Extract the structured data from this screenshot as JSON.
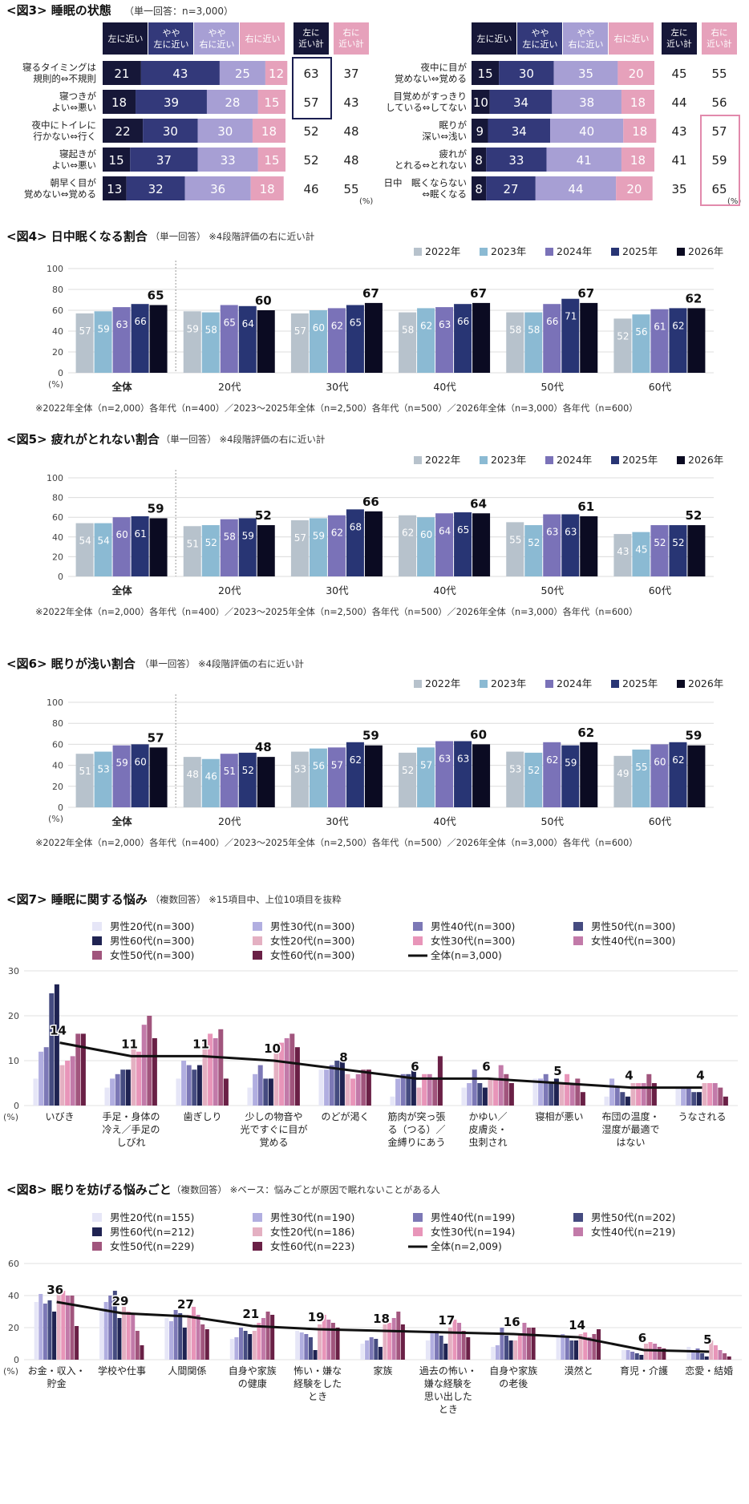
{
  "fig3": {
    "title": "<図3> 睡眠の状態",
    "note": "（単一回答：n=3,000）",
    "headers": [
      "左に近い",
      "やや 左に近い",
      "やや 右に近い",
      "右に近い"
    ],
    "sum_headers": [
      "左に 近い計",
      "右に 近い計"
    ],
    "unit": "(%)",
    "colors": [
      "#161738",
      "#33397a",
      "#a79fd4",
      "#e6a1bb"
    ],
    "left": [
      {
        "label": [
          "寝るタイミングは",
          "規則的⇔不規則"
        ],
        "values": [
          21,
          43,
          25,
          12
        ],
        "left_sum": 63,
        "right_sum": 37
      },
      {
        "label": [
          "寝つきが",
          "よい⇔悪い"
        ],
        "values": [
          18,
          39,
          28,
          15
        ],
        "left_sum": 57,
        "right_sum": 43
      },
      {
        "label": [
          "夜中にトイレに",
          "行かない⇔行く"
        ],
        "values": [
          22,
          30,
          30,
          18
        ],
        "left_sum": 52,
        "right_sum": 48
      },
      {
        "label": [
          "寝起きが",
          "よい⇔悪い"
        ],
        "values": [
          15,
          37,
          33,
          15
        ],
        "left_sum": 52,
        "right_sum": 48
      },
      {
        "label": [
          "朝早く目が",
          "覚めない⇔覚める"
        ],
        "values": [
          13,
          32,
          36,
          18
        ],
        "left_sum": 46,
        "right_sum": 55
      }
    ],
    "right": [
      {
        "label": [
          "夜中に目が",
          "覚めない⇔覚める"
        ],
        "values": [
          15,
          30,
          35,
          20
        ],
        "left_sum": 45,
        "right_sum": 55
      },
      {
        "label": [
          "目覚めがすっきり",
          "している⇔してない"
        ],
        "values": [
          10,
          34,
          38,
          18
        ],
        "left_sum": 44,
        "right_sum": 56
      },
      {
        "label": [
          "眠りが",
          "深い⇔浅い"
        ],
        "values": [
          9,
          34,
          40,
          18
        ],
        "left_sum": 43,
        "right_sum": 57
      },
      {
        "label": [
          "疲れが",
          "とれる⇔とれない"
        ],
        "values": [
          8,
          33,
          41,
          18
        ],
        "left_sum": 41,
        "right_sum": 59
      },
      {
        "label": [
          "日中　眠くならない",
          "⇔眠くなる"
        ],
        "values": [
          8,
          27,
          44,
          20
        ],
        "left_sum": 35,
        "right_sum": 65
      }
    ]
  },
  "chart_data": [
    {
      "type": "bar",
      "title": "<図4> 日中眠くなる割合",
      "note": "（単一回答） ※4段階評価の右に近い計",
      "categories": [
        "全体",
        "20代",
        "30代",
        "40代",
        "50代",
        "60代"
      ],
      "series": [
        {
          "name": "2022年",
          "color": "#b7c2cc",
          "values": [
            57,
            59,
            57,
            58,
            58,
            52
          ]
        },
        {
          "name": "2023年",
          "color": "#8bbad3",
          "values": [
            59,
            58,
            60,
            62,
            58,
            56
          ]
        },
        {
          "name": "2024年",
          "color": "#7a72b8",
          "values": [
            63,
            65,
            62,
            63,
            66,
            61
          ]
        },
        {
          "name": "2025年",
          "color": "#283574",
          "values": [
            66,
            64,
            65,
            66,
            71,
            62
          ]
        },
        {
          "name": "2026年",
          "color": "#0b0b22",
          "values": [
            65,
            60,
            67,
            67,
            67,
            62
          ]
        }
      ],
      "ylim": [
        0,
        100
      ],
      "yticks": [
        0,
        20,
        40,
        60,
        80,
        100
      ],
      "ylabel": "(%)",
      "footnote": "※2022年全体（n=2,000）各年代（n=400）／2023～2025年全体（n=2,500）各年代（n=500）／2026年全体（n=3,000）各年代（n=600）"
    },
    {
      "type": "bar",
      "title": "<図5> 疲れがとれない割合",
      "note": "（単一回答） ※4段階評価の右に近い計",
      "categories": [
        "全体",
        "20代",
        "30代",
        "40代",
        "50代",
        "60代"
      ],
      "series": [
        {
          "name": "2022年",
          "color": "#b7c2cc",
          "values": [
            54,
            51,
            57,
            62,
            55,
            43
          ]
        },
        {
          "name": "2023年",
          "color": "#8bbad3",
          "values": [
            54,
            52,
            59,
            60,
            52,
            45
          ]
        },
        {
          "name": "2024年",
          "color": "#7a72b8",
          "values": [
            60,
            58,
            62,
            64,
            63,
            52
          ]
        },
        {
          "name": "2025年",
          "color": "#283574",
          "values": [
            61,
            59,
            68,
            65,
            63,
            52
          ]
        },
        {
          "name": "2026年",
          "color": "#0b0b22",
          "values": [
            59,
            52,
            66,
            64,
            61,
            52
          ]
        }
      ],
      "ylim": [
        0,
        100
      ],
      "yticks": [
        0,
        20,
        40,
        60,
        80,
        100
      ],
      "ylabel": "",
      "footnote": "※2022年全体（n=2,000）各年代（n=400）／2023～2025年全体（n=2,500）各年代（n=500）／2026年全体（n=3,000）各年代（n=600）"
    },
    {
      "type": "bar",
      "title": "<図6> 眠りが浅い割合",
      "note": "（単一回答） ※4段階評価の右に近い計",
      "categories": [
        "全体",
        "20代",
        "30代",
        "40代",
        "50代",
        "60代"
      ],
      "series": [
        {
          "name": "2022年",
          "color": "#b7c2cc",
          "values": [
            51,
            48,
            53,
            52,
            53,
            49
          ]
        },
        {
          "name": "2023年",
          "color": "#8bbad3",
          "values": [
            53,
            46,
            56,
            57,
            52,
            55
          ]
        },
        {
          "name": "2024年",
          "color": "#7a72b8",
          "values": [
            59,
            51,
            57,
            63,
            62,
            60
          ]
        },
        {
          "name": "2025年",
          "color": "#283574",
          "values": [
            60,
            52,
            62,
            63,
            59,
            62
          ]
        },
        {
          "name": "2026年",
          "color": "#0b0b22",
          "values": [
            57,
            48,
            59,
            60,
            62,
            59
          ]
        }
      ],
      "ylim": [
        0,
        100
      ],
      "yticks": [
        0,
        20,
        40,
        60,
        80,
        100
      ],
      "ylabel": "(%)",
      "footnote": "※2022年全体（n=2,000）各年代（n=400）／2023～2025年全体（n=2,500）各年代（n=500）／2026年全体（n=3,000）各年代（n=600）"
    },
    {
      "type": "bar+line",
      "title": "<図7> 睡眠に関する悩み",
      "note": "（複数回答） ※15項目中、上位10項目を抜粋",
      "categories": [
        "いびき",
        "手足・身体の 冷え／手足の しびれ",
        "歯ぎしり",
        "少しの物音や 光ですぐに目が 覚める",
        "のどが渇く",
        "筋肉が突っ張 る（つる）／ 金縛りにあう",
        "かゆい／ 皮膚炎・ 虫刺され",
        "寝相が悪い",
        "布団の温度・ 湿度が最適で はない",
        "うなされる"
      ],
      "series": [
        {
          "name": "男性20代(n=300)",
          "color": "#e6e6f7",
          "values": [
            6,
            4,
            6,
            4,
            8,
            2,
            4,
            6,
            2,
            4
          ]
        },
        {
          "name": "男性30代(n=300)",
          "color": "#b1aee0",
          "values": [
            12,
            6,
            10,
            7,
            8,
            6,
            5,
            6,
            6,
            4
          ]
        },
        {
          "name": "男性40代(n=300)",
          "color": "#7c78b6",
          "values": [
            13,
            7,
            9,
            9,
            9,
            7,
            8,
            7,
            4,
            4
          ]
        },
        {
          "name": "男性50代(n=300)",
          "color": "#454b80",
          "values": [
            25,
            8,
            8,
            6,
            10,
            7,
            5,
            5,
            3,
            3
          ]
        },
        {
          "name": "男性60代(n=300)",
          "color": "#1f2352",
          "values": [
            27,
            8,
            9,
            6,
            11,
            8,
            4,
            6,
            2,
            3
          ]
        },
        {
          "name": "女性20代(n=300)",
          "color": "#e4b0c2",
          "values": [
            9,
            13,
            14,
            13,
            7,
            4,
            6,
            5,
            5,
            5
          ]
        },
        {
          "name": "女性30代(n=300)",
          "color": "#e895b9",
          "values": [
            10,
            12,
            16,
            14,
            6,
            7,
            6,
            7,
            5,
            5
          ]
        },
        {
          "name": "女性40代(n=300)",
          "color": "#c27aa9",
          "values": [
            11,
            18,
            15,
            15,
            7,
            7,
            9,
            5,
            5,
            5
          ]
        },
        {
          "name": "女性50代(n=300)",
          "color": "#a1557d",
          "values": [
            16,
            20,
            17,
            16,
            8,
            6,
            7,
            6,
            7,
            4
          ]
        },
        {
          "name": "女性60代(n=300)",
          "color": "#6a2046",
          "values": [
            16,
            15,
            6,
            13,
            8,
            11,
            5,
            3,
            5,
            2
          ]
        }
      ],
      "line": {
        "name": "全体(n=3,000)",
        "color": "#111111",
        "values": [
          14,
          11,
          11,
          10,
          8,
          6,
          6,
          5,
          4,
          4
        ]
      },
      "ylim": [
        0,
        30
      ],
      "yticks": [
        0,
        10,
        20,
        30
      ],
      "ylabel": "(%)"
    },
    {
      "type": "bar+line",
      "title": "<図8> 眠りを妨げる悩みごと",
      "note": "（複数回答） ※ベース：悩みごとが原因で眠れないことがある人",
      "categories": [
        "お金・収入・ 貯金",
        "学校や仕事",
        "人間関係",
        "自身や家族 の健康",
        "怖い・嫌な 経験をした とき",
        "家族",
        "過去の怖い・ 嫌な経験を 思い出した とき",
        "自身や家族 の老後",
        "漠然と",
        "育児・介護",
        "恋愛・結婚"
      ],
      "series": [
        {
          "name": "男性20代(n=155)",
          "color": "#e6e6f7",
          "values": [
            36,
            32,
            26,
            13,
            18,
            10,
            12,
            8,
            15,
            6,
            8
          ]
        },
        {
          "name": "男性30代(n=190)",
          "color": "#b1aee0",
          "values": [
            41,
            36,
            24,
            14,
            17,
            12,
            17,
            9,
            16,
            6,
            5
          ]
        },
        {
          "name": "男性40代(n=199)",
          "color": "#7c78b6",
          "values": [
            35,
            40,
            31,
            20,
            16,
            14,
            18,
            20,
            15,
            5,
            7
          ]
        },
        {
          "name": "男性50代(n=202)",
          "color": "#454b80",
          "values": [
            37,
            43,
            29,
            18,
            14,
            13,
            15,
            15,
            12,
            4,
            4
          ]
        },
        {
          "name": "男性60代(n=212)",
          "color": "#1f2352",
          "values": [
            30,
            26,
            20,
            16,
            6,
            8,
            10,
            12,
            12,
            3,
            2
          ]
        },
        {
          "name": "女性20代(n=186)",
          "color": "#e4b0c2",
          "values": [
            45,
            33,
            28,
            18,
            22,
            22,
            20,
            12,
            16,
            10,
            12
          ]
        },
        {
          "name": "女性30代(n=194)",
          "color": "#e895b9",
          "values": [
            43,
            30,
            33,
            23,
            28,
            23,
            25,
            16,
            17,
            11,
            9
          ]
        },
        {
          "name": "女性40代(n=219)",
          "color": "#c27aa9",
          "values": [
            40,
            28,
            28,
            26,
            25,
            26,
            23,
            23,
            14,
            10,
            6
          ]
        },
        {
          "name": "女性50代(n=229)",
          "color": "#a1557d",
          "values": [
            40,
            18,
            22,
            30,
            23,
            30,
            18,
            20,
            16,
            8,
            4
          ]
        },
        {
          "name": "女性60代(n=223)",
          "color": "#6a2046",
          "values": [
            21,
            9,
            19,
            28,
            20,
            22,
            14,
            20,
            19,
            7,
            2
          ]
        }
      ],
      "line": {
        "name": "全体(n=2,009)",
        "color": "#111111",
        "values": [
          36,
          29,
          27,
          21,
          19,
          18,
          17,
          16,
          14,
          6,
          5
        ]
      },
      "ylim": [
        0,
        60
      ],
      "yticks": [
        0,
        20,
        40,
        60
      ],
      "ylabel": "(%)"
    }
  ]
}
